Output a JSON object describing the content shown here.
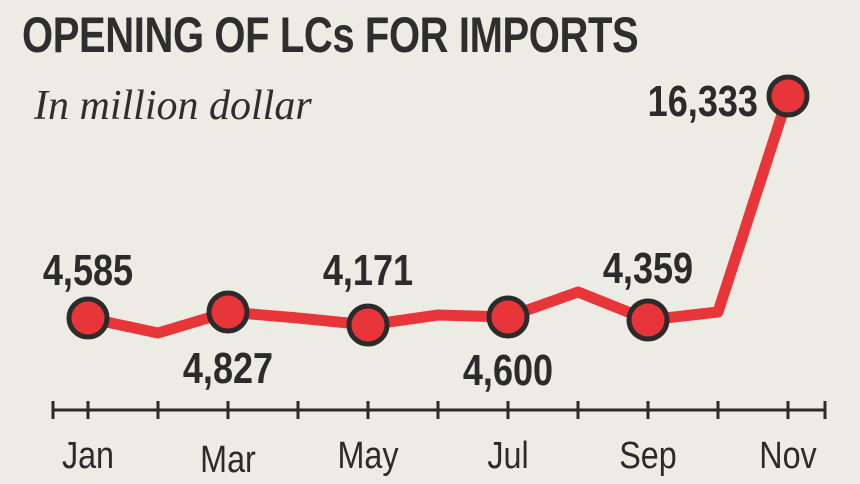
{
  "chart_data": {
    "type": "line",
    "title": "OPENING OF LCs FOR IMPORTS",
    "subtitle": "In million dollar",
    "x_labels": [
      "Jan",
      "Mar",
      "May",
      "Jul",
      "Sep",
      "Nov"
    ],
    "points": [
      {
        "month": "Jan",
        "value": 4585,
        "label": "4,585",
        "marker": true
      },
      {
        "month": "Feb",
        "value": null,
        "marker": false
      },
      {
        "month": "Mar",
        "value": 4827,
        "label": "4,827",
        "marker": true
      },
      {
        "month": "Apr",
        "value": null,
        "marker": false
      },
      {
        "month": "May",
        "value": 4171,
        "label": "4,171",
        "marker": true
      },
      {
        "month": "Jun",
        "value": null,
        "marker": false
      },
      {
        "month": "Jul",
        "value": 4600,
        "label": "4,600",
        "marker": true
      },
      {
        "month": "Aug",
        "value": null,
        "marker": false
      },
      {
        "month": "Sep",
        "value": 4359,
        "label": "4,359",
        "marker": true
      },
      {
        "month": "Oct",
        "value": null,
        "marker": false
      },
      {
        "month": "Nov",
        "value": 16333,
        "label": "16,333",
        "marker": true
      }
    ],
    "colors": {
      "line": "#e8353a",
      "marker_fill": "#e8353a",
      "marker_stroke": "#2b2b2b",
      "axis": "#2b2b2b",
      "background": "#ecebe4"
    },
    "grid": false,
    "legend": "none"
  }
}
